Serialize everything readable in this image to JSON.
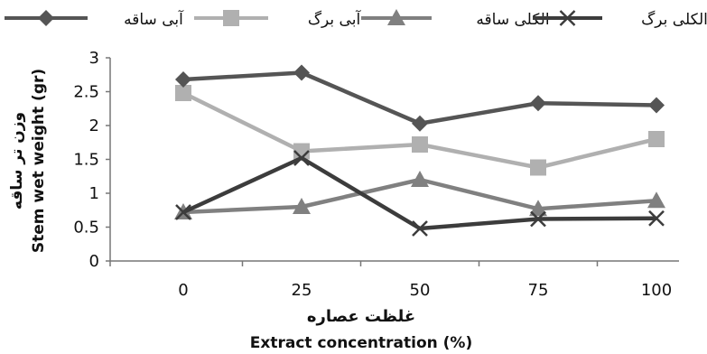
{
  "chart_data": {
    "type": "line",
    "x": [
      0,
      25,
      50,
      75,
      100
    ],
    "xlabel": "غلظت عصاره",
    "xlabel_en": "Extract concentration (%)",
    "ylabel": "وزن تر ساقه",
    "ylabel_en": "Stem wet  weight (gr)",
    "ylim": [
      0,
      3
    ],
    "yticks": [
      "0",
      "0.5",
      "1",
      "1.5",
      "2",
      "2.5",
      "3"
    ],
    "xticks": [
      "0",
      "25",
      "50",
      "75",
      "100"
    ],
    "grid": false,
    "legend_position": "top",
    "series": [
      {
        "name": "آبی ساقه",
        "values": [
          2.68,
          2.78,
          2.03,
          2.33,
          2.3
        ],
        "color": "#555555",
        "marker": "diamond"
      },
      {
        "name": "آبی برگ",
        "values": [
          2.48,
          1.62,
          1.72,
          1.38,
          1.8
        ],
        "color": "#b0b0b0",
        "marker": "square"
      },
      {
        "name": "الکلی ساقه",
        "values": [
          0.72,
          0.8,
          1.2,
          0.77,
          0.89
        ],
        "color": "#808080",
        "marker": "triangle"
      },
      {
        "name": "الکلی برگ",
        "values": [
          0.72,
          1.52,
          0.48,
          0.62,
          0.63
        ],
        "color": "#3c3c3c",
        "marker": "x"
      }
    ]
  }
}
